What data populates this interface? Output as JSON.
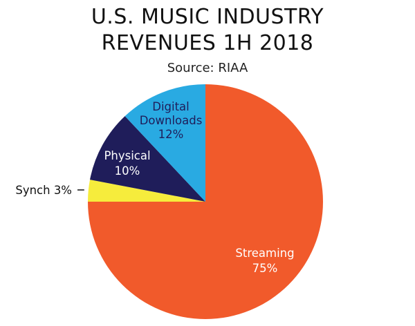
{
  "chart_data": {
    "type": "pie",
    "title_lines": [
      "U.S. MUSIC INDUSTRY",
      "REVENUES 1H 2018"
    ],
    "subtitle": "Source: RIAA",
    "start_angle_deg": 0,
    "direction": "clockwise",
    "slices": [
      {
        "name": "Streaming",
        "label_lines": [
          "Streaming",
          "75%"
        ],
        "value": 75,
        "color": "#f15a2b",
        "text_color": "#ffffff",
        "label_inside": true
      },
      {
        "name": "Synch",
        "label_lines": [
          "Synch 3%"
        ],
        "value": 3,
        "color": "#f6ec3c",
        "text_color": "#111111",
        "label_inside": false
      },
      {
        "name": "Physical",
        "label_lines": [
          "Physical",
          "10%"
        ],
        "value": 10,
        "color": "#1f1d5a",
        "text_color": "#ffffff",
        "label_inside": true
      },
      {
        "name": "Digital Downloads",
        "label_lines": [
          "Digital",
          "Downloads",
          "12%"
        ],
        "value": 12,
        "color": "#29aae2",
        "text_color": "#1f1d5a",
        "label_inside": true
      }
    ]
  }
}
